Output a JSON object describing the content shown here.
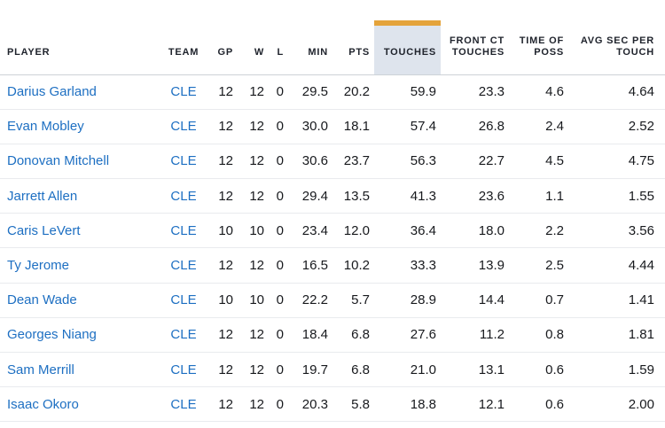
{
  "colors": {
    "accent_bar": "#e4a33b",
    "highlight_bg": "#dee4ed",
    "link_blue": "#1d6fc2",
    "header_text": "#20242d",
    "body_text": "#17191d",
    "header_border": "#cdd2d7",
    "row_border": "#e9ebee"
  },
  "table": {
    "columns": [
      {
        "id": "player",
        "label": "PLAYER",
        "align": "left",
        "highlighted": false
      },
      {
        "id": "team",
        "label": "TEAM",
        "align": "center",
        "highlighted": false
      },
      {
        "id": "gp",
        "label": "GP",
        "align": "right",
        "highlighted": false
      },
      {
        "id": "w",
        "label": "W",
        "align": "right",
        "highlighted": false
      },
      {
        "id": "l",
        "label": "L",
        "align": "right",
        "highlighted": false
      },
      {
        "id": "min",
        "label": "MIN",
        "align": "right",
        "highlighted": false
      },
      {
        "id": "pts",
        "label": "PTS",
        "align": "right",
        "highlighted": false
      },
      {
        "id": "touches",
        "label": "TOUCHES",
        "align": "right",
        "highlighted": true
      },
      {
        "id": "front_ct_touches",
        "label": "FRONT CT TOUCHES",
        "align": "right",
        "highlighted": false
      },
      {
        "id": "time_of_poss",
        "label": "TIME OF POSS",
        "align": "right",
        "highlighted": false
      },
      {
        "id": "avg_sec_per_touch",
        "label": "AVG SEC PER TOUCH",
        "align": "right",
        "highlighted": false
      }
    ],
    "rows": [
      {
        "player": "Darius Garland",
        "team": "CLE",
        "gp": "12",
        "w": "12",
        "l": "0",
        "min": "29.5",
        "pts": "20.2",
        "touches": "59.9",
        "front_ct_touches": "23.3",
        "time_of_poss": "4.6",
        "avg_sec_per_touch": "4.64"
      },
      {
        "player": "Evan Mobley",
        "team": "CLE",
        "gp": "12",
        "w": "12",
        "l": "0",
        "min": "30.0",
        "pts": "18.1",
        "touches": "57.4",
        "front_ct_touches": "26.8",
        "time_of_poss": "2.4",
        "avg_sec_per_touch": "2.52"
      },
      {
        "player": "Donovan Mitchell",
        "team": "CLE",
        "gp": "12",
        "w": "12",
        "l": "0",
        "min": "30.6",
        "pts": "23.7",
        "touches": "56.3",
        "front_ct_touches": "22.7",
        "time_of_poss": "4.5",
        "avg_sec_per_touch": "4.75"
      },
      {
        "player": "Jarrett Allen",
        "team": "CLE",
        "gp": "12",
        "w": "12",
        "l": "0",
        "min": "29.4",
        "pts": "13.5",
        "touches": "41.3",
        "front_ct_touches": "23.6",
        "time_of_poss": "1.1",
        "avg_sec_per_touch": "1.55"
      },
      {
        "player": "Caris LeVert",
        "team": "CLE",
        "gp": "10",
        "w": "10",
        "l": "0",
        "min": "23.4",
        "pts": "12.0",
        "touches": "36.4",
        "front_ct_touches": "18.0",
        "time_of_poss": "2.2",
        "avg_sec_per_touch": "3.56"
      },
      {
        "player": "Ty Jerome",
        "team": "CLE",
        "gp": "12",
        "w": "12",
        "l": "0",
        "min": "16.5",
        "pts": "10.2",
        "touches": "33.3",
        "front_ct_touches": "13.9",
        "time_of_poss": "2.5",
        "avg_sec_per_touch": "4.44"
      },
      {
        "player": "Dean Wade",
        "team": "CLE",
        "gp": "10",
        "w": "10",
        "l": "0",
        "min": "22.2",
        "pts": "5.7",
        "touches": "28.9",
        "front_ct_touches": "14.4",
        "time_of_poss": "0.7",
        "avg_sec_per_touch": "1.41"
      },
      {
        "player": "Georges Niang",
        "team": "CLE",
        "gp": "12",
        "w": "12",
        "l": "0",
        "min": "18.4",
        "pts": "6.8",
        "touches": "27.6",
        "front_ct_touches": "11.2",
        "time_of_poss": "0.8",
        "avg_sec_per_touch": "1.81"
      },
      {
        "player": "Sam Merrill",
        "team": "CLE",
        "gp": "12",
        "w": "12",
        "l": "0",
        "min": "19.7",
        "pts": "6.8",
        "touches": "21.0",
        "front_ct_touches": "13.1",
        "time_of_poss": "0.6",
        "avg_sec_per_touch": "1.59"
      },
      {
        "player": "Isaac Okoro",
        "team": "CLE",
        "gp": "12",
        "w": "12",
        "l": "0",
        "min": "20.3",
        "pts": "5.8",
        "touches": "18.8",
        "front_ct_touches": "12.1",
        "time_of_poss": "0.6",
        "avg_sec_per_touch": "2.00"
      }
    ]
  }
}
